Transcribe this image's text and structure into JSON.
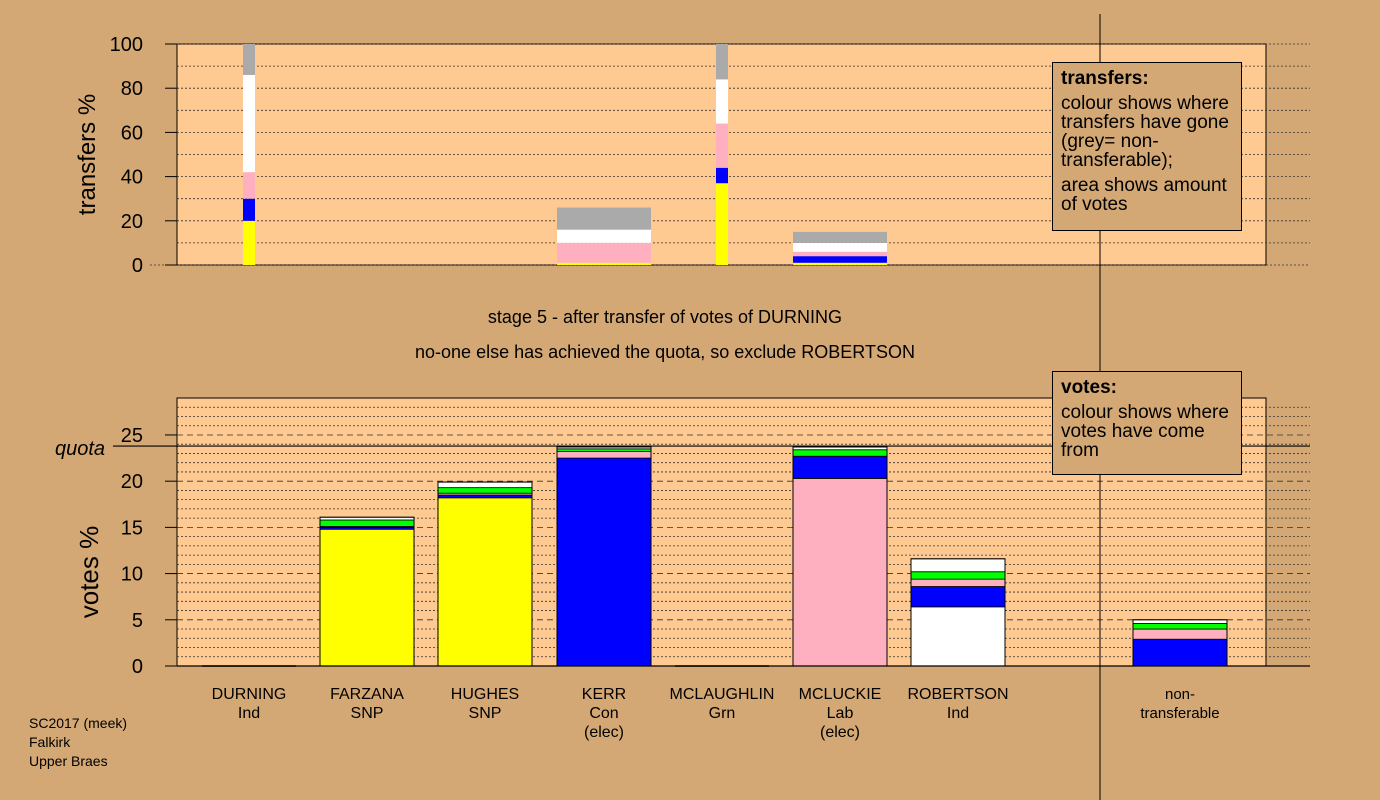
{
  "chart_data": [
    {
      "type": "bar",
      "ylabel": "transfers %",
      "ylim": [
        0,
        100
      ],
      "yticks": [
        0,
        20,
        40,
        60,
        80,
        100
      ],
      "categories": [
        "DURNING",
        "FARZANA",
        "HUGHES",
        "KERR",
        "MCLAUGHLIN",
        "MCLUCKIE",
        "ROBERTSON",
        "non-transferable"
      ],
      "bars": [
        {
          "candidate": "DURNING",
          "width": "narrow",
          "segments": [
            {
              "colour": "#ffff00",
              "value": 20
            },
            {
              "colour": "#0000ff",
              "value": 10
            },
            {
              "colour": "#ffb0c0",
              "value": 12
            },
            {
              "colour": "#ffffff",
              "value": 44
            },
            {
              "colour": "#aaaaaa",
              "value": 14
            }
          ]
        },
        {
          "candidate": "KERR",
          "width": "wide",
          "segments": [
            {
              "colour": "#ffff00",
              "value": 1
            },
            {
              "colour": "#ffb0c0",
              "value": 9
            },
            {
              "colour": "#ffffff",
              "value": 6
            },
            {
              "colour": "#aaaaaa",
              "value": 10
            }
          ]
        },
        {
          "candidate": "MCLAUGHLIN",
          "width": "narrow",
          "segments": [
            {
              "colour": "#ffff00",
              "value": 37
            },
            {
              "colour": "#0000ff",
              "value": 7
            },
            {
              "colour": "#ffb0c0",
              "value": 20
            },
            {
              "colour": "#ffffff",
              "value": 20
            },
            {
              "colour": "#aaaaaa",
              "value": 16
            }
          ]
        },
        {
          "candidate": "MCLUCKIE",
          "width": "wide",
          "segments": [
            {
              "colour": "#ffff00",
              "value": 1
            },
            {
              "colour": "#0000ff",
              "value": 3
            },
            {
              "colour": "#ffb0c0",
              "value": 2
            },
            {
              "colour": "#ffffff",
              "value": 4
            },
            {
              "colour": "#aaaaaa",
              "value": 5
            }
          ]
        }
      ]
    },
    {
      "type": "bar",
      "ylabel": "votes %",
      "ylim": [
        0,
        29
      ],
      "yticks": [
        0,
        5,
        10,
        15,
        20,
        25
      ],
      "quota": 23.8,
      "quota_label": "quota",
      "categories": [
        "DURNING",
        "FARZANA",
        "HUGHES",
        "KERR",
        "MCLAUGHLIN",
        "MCLUCKIE",
        "ROBERTSON",
        "non-transferable"
      ],
      "bars": [
        {
          "candidate": "DURNING",
          "segments": []
        },
        {
          "candidate": "FARZANA",
          "segments": [
            {
              "colour": "#ffff00",
              "value": 14.8
            },
            {
              "colour": "#0000ff",
              "value": 0.2
            },
            {
              "colour": "#ffb0c0",
              "value": 0.1
            },
            {
              "colour": "#00ff00",
              "value": 0.7
            },
            {
              "colour": "#ffffff",
              "value": 0.3
            }
          ]
        },
        {
          "candidate": "HUGHES",
          "segments": [
            {
              "colour": "#ffff00",
              "value": 18.2
            },
            {
              "colour": "#0000ff",
              "value": 0.3
            },
            {
              "colour": "#ffb0c0",
              "value": 0.2
            },
            {
              "colour": "#00ff00",
              "value": 0.6
            },
            {
              "colour": "#ffffff",
              "value": 0.6
            }
          ]
        },
        {
          "candidate": "KERR",
          "segments": [
            {
              "colour": "#0000ff",
              "value": 22.5
            },
            {
              "colour": "#ffb0c0",
              "value": 0.7
            },
            {
              "colour": "#00ff00",
              "value": 0.3
            },
            {
              "colour": "#ffffff",
              "value": 0.2
            }
          ]
        },
        {
          "candidate": "MCLAUGHLIN",
          "segments": []
        },
        {
          "candidate": "MCLUCKIE",
          "segments": [
            {
              "colour": "#ffb0c0",
              "value": 20.3
            },
            {
              "colour": "#0000ff",
              "value": 2.4
            },
            {
              "colour": "#00ff00",
              "value": 0.7
            },
            {
              "colour": "#ffffff",
              "value": 0.3
            }
          ]
        },
        {
          "candidate": "ROBERTSON",
          "segments": [
            {
              "colour": "#ffffff",
              "value": 6.4
            },
            {
              "colour": "#0000ff",
              "value": 2.2
            },
            {
              "colour": "#ffb0c0",
              "value": 0.8
            },
            {
              "colour": "#00ff00",
              "value": 0.8
            },
            {
              "colour": "#ffffff",
              "value": 1.4
            }
          ]
        },
        {
          "candidate": "non-transferable",
          "segments": [
            {
              "colour": "#0000ff",
              "value": 2.9
            },
            {
              "colour": "#ffb0c0",
              "value": 1.1
            },
            {
              "colour": "#00ff00",
              "value": 0.6
            },
            {
              "colour": "#ffffff",
              "value": 0.4
            }
          ]
        }
      ]
    }
  ],
  "candidates": [
    {
      "key": "DURNING",
      "lines": [
        "DURNING",
        "Ind"
      ]
    },
    {
      "key": "FARZANA",
      "lines": [
        "FARZANA",
        "SNP"
      ]
    },
    {
      "key": "HUGHES",
      "lines": [
        "HUGHES",
        "SNP"
      ]
    },
    {
      "key": "KERR",
      "lines": [
        "KERR",
        "Con",
        "(elec)"
      ]
    },
    {
      "key": "MCLAUGHLIN",
      "lines": [
        "MCLAUGHLIN",
        "Grn"
      ]
    },
    {
      "key": "MCLUCKIE",
      "lines": [
        "MCLUCKIE",
        "Lab",
        "(elec)"
      ]
    },
    {
      "key": "ROBERTSON",
      "lines": [
        "ROBERTSON",
        "Ind"
      ]
    },
    {
      "key": "non-transferable",
      "lines": [
        "non-",
        "transferable"
      ]
    }
  ],
  "stage": {
    "line1": "stage 5 - after transfer of votes of DURNING",
    "line2": "no-one else has achieved the quota, so exclude ROBERTSON"
  },
  "legend_transfers": {
    "title": "transfers:",
    "para1": "colour shows where transfers have gone (grey= non-transferable);",
    "para2": "area shows amount of votes"
  },
  "legend_votes": {
    "title": "votes:",
    "para1": "colour shows where votes have come from"
  },
  "source": {
    "line1": "SC2017 (meek)",
    "line2": "Falkirk",
    "line3": "Upper Braes"
  },
  "colors": {
    "background": "#d4a874",
    "plot_background": "#ffc992"
  }
}
